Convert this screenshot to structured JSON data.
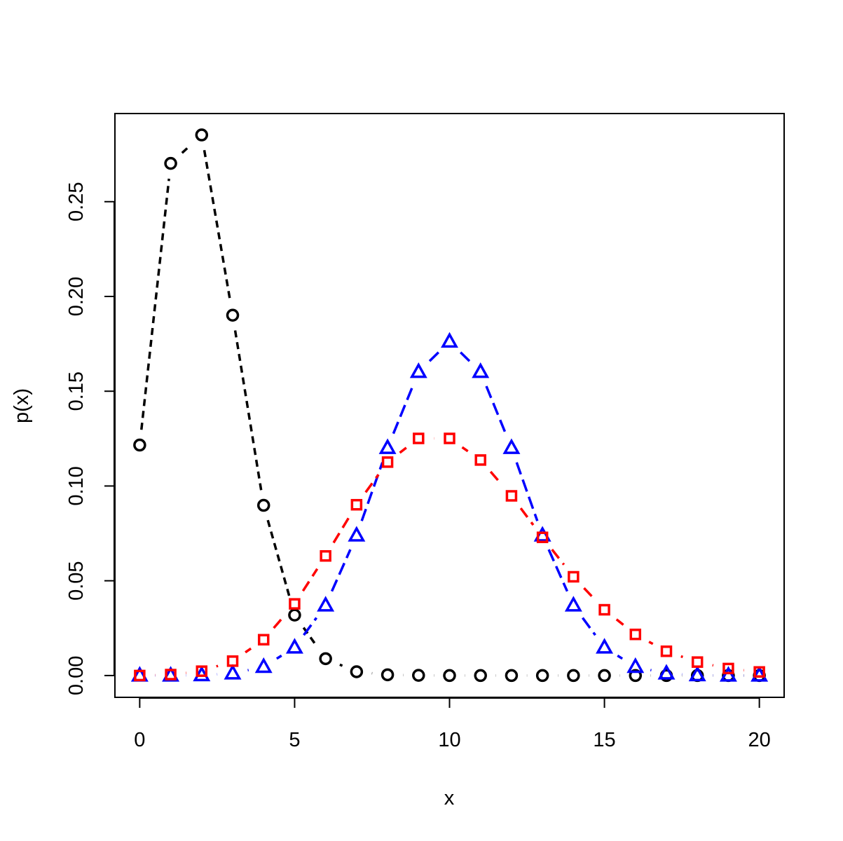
{
  "chart_data": {
    "type": "line",
    "title": "",
    "xlabel": "x",
    "ylabel": "p(x)",
    "xlim": [
      -0.8,
      20.8
    ],
    "ylim": [
      -0.0115,
      0.2965
    ],
    "x_ticks": [
      0,
      5,
      10,
      15,
      20
    ],
    "x_tick_labels": [
      "0",
      "5",
      "10",
      "15",
      "20"
    ],
    "y_ticks": [
      0,
      0.05,
      0.1,
      0.15,
      0.2,
      0.25
    ],
    "y_tick_labels": [
      "0.00",
      "0.05",
      "0.10",
      "0.15",
      "0.20",
      "0.25"
    ],
    "grid": false,
    "legend": "none",
    "x": [
      0,
      1,
      2,
      3,
      4,
      5,
      6,
      7,
      8,
      9,
      10,
      11,
      12,
      13,
      14,
      15,
      16,
      17,
      18,
      19,
      20
    ],
    "series": [
      {
        "color": "#000000",
        "marker": "circle",
        "values": [
          0.1216,
          0.2702,
          0.2852,
          0.1901,
          0.0898,
          0.0319,
          0.0089,
          0.002,
          0.0004,
          0.0001,
          0.0,
          0.0,
          0.0,
          0.0,
          0.0,
          0.0,
          0.0,
          0.0,
          0.0,
          0.0,
          0.0
        ]
      },
      {
        "color": "#0000ff",
        "marker": "triangle",
        "values": [
          0.0,
          0.0,
          0.0002,
          0.0011,
          0.0046,
          0.0148,
          0.037,
          0.0739,
          0.1201,
          0.1602,
          0.1762,
          0.1602,
          0.1201,
          0.0739,
          0.037,
          0.0148,
          0.0046,
          0.0011,
          0.0002,
          0.0,
          0.0
        ]
      },
      {
        "color": "#ff0000",
        "marker": "square",
        "values": [
          0.0,
          0.0005,
          0.0023,
          0.0076,
          0.0189,
          0.0378,
          0.0631,
          0.0901,
          0.1126,
          0.1251,
          0.1251,
          0.1137,
          0.0948,
          0.0729,
          0.0521,
          0.0347,
          0.0217,
          0.0128,
          0.0071,
          0.0037,
          0.0019
        ]
      }
    ]
  }
}
